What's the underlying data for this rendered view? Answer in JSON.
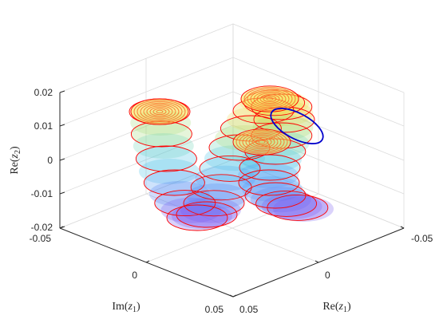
{
  "chart_data": {
    "type": "surface3d",
    "title": "",
    "xlabel": "Re(z1)",
    "ylabel": "Im(z1)",
    "zlabel": "Re(z2)",
    "label_parts": {
      "x": {
        "main": "Re(",
        "var": "z",
        "sub": "1",
        "close": ")"
      },
      "y": {
        "main": "Im(",
        "var": "z",
        "sub": "1",
        "close": ")"
      },
      "z": {
        "main": "Re(",
        "var": "z",
        "sub": "2",
        "close": ")"
      }
    },
    "x_ticks": [
      "-0.05",
      "0",
      "0.05"
    ],
    "y_ticks": [
      "-0.05",
      "0",
      "0.05"
    ],
    "z_ticks": [
      "0.02",
      "0.01",
      "0",
      "-0.01",
      "-0.02"
    ],
    "xlim": [
      -0.05,
      0.05
    ],
    "ylim": [
      -0.05,
      0.05
    ],
    "zlim": [
      -0.02,
      0.02
    ],
    "grid": true,
    "colormap": "parula-like (blue → cyan → green → yellow)",
    "ring_color": "#ff0000",
    "highlight_ring_color": "#0000cc"
  }
}
